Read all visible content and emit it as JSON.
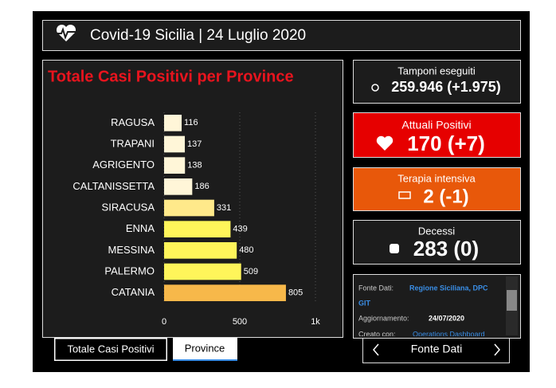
{
  "header": {
    "title": "Covid-19 Sicilia | 24 Luglio 2020"
  },
  "chart_data": {
    "type": "bar",
    "orientation": "horizontal",
    "title": "Totale Casi Positivi per Province",
    "categories": [
      "RAGUSA",
      "TRAPANI",
      "AGRIGENTO",
      "CALTANISSETTA",
      "SIRACUSA",
      "ENNA",
      "MESSINA",
      "PALERMO",
      "CATANIA"
    ],
    "values": [
      116,
      137,
      138,
      186,
      331,
      439,
      480,
      509,
      805
    ],
    "colors": [
      "#fff6d8",
      "#fff6d8",
      "#fff6d8",
      "#fff6d8",
      "#ffe98a",
      "#fff55a",
      "#fff55a",
      "#fff55a",
      "#f7b84a"
    ],
    "xlim": [
      0,
      1000
    ],
    "xticks": [
      0,
      500,
      {
        "value": 1000,
        "label": "1k"
      }
    ],
    "grid": true
  },
  "cards": [
    {
      "label": "Tamponi eseguiti",
      "value": "259.946 (+1.975)",
      "color": "#1c1c1c"
    },
    {
      "label": "Attuali Positivi",
      "value": "170 (+7)",
      "color": "#e60000"
    },
    {
      "label": "Terapia intensiva",
      "value": "2 (-1)",
      "color": "#e8580a"
    },
    {
      "label": "Decessi",
      "value": "283 (0)",
      "color": "#1c1c1c"
    }
  ],
  "info": {
    "source_label": "Fonte Dati:",
    "source_link": "Regione Siciliana, DPC",
    "source_link2": "GIT",
    "update_label": "Aggiornamento:",
    "update_value": "24/07/2020",
    "created_label": "Creato con:",
    "created_link": "Operations Dashboard"
  },
  "tabs": [
    "Totale Casi Positivi",
    "Province"
  ],
  "nav": {
    "label": "Fonte Dati"
  }
}
